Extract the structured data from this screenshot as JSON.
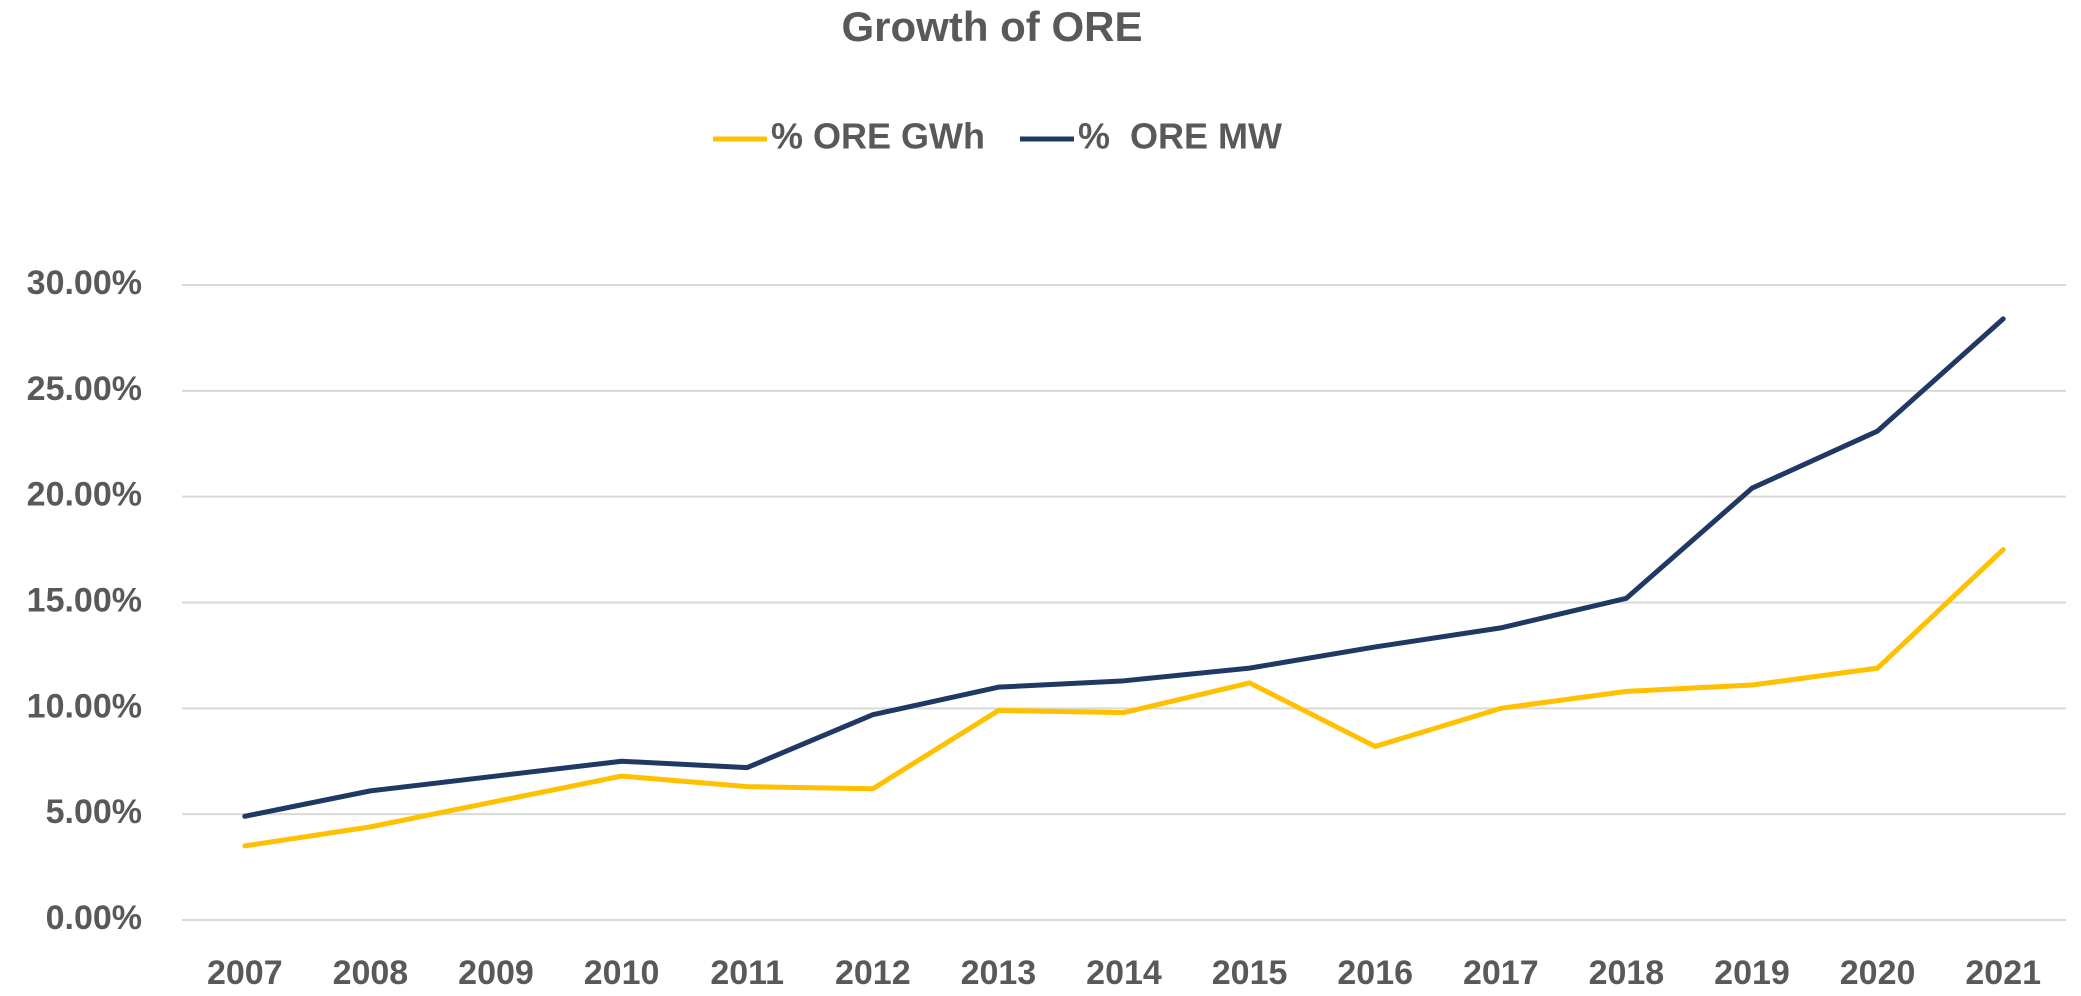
{
  "chart_data": {
    "type": "line",
    "title": "Growth of ORE",
    "categories": [
      "2007",
      "2008",
      "2009",
      "2010",
      "2011",
      "2012",
      "2013",
      "2014",
      "2015",
      "2016",
      "2017",
      "2018",
      "2019",
      "2020",
      "2021"
    ],
    "series": [
      {
        "name": "% ORE GWh",
        "color": "#ffc000",
        "values": [
          3.5,
          4.4,
          5.6,
          6.8,
          6.3,
          6.2,
          9.9,
          9.8,
          11.2,
          8.2,
          10.0,
          10.8,
          11.1,
          11.9,
          17.5
        ]
      },
      {
        "name": "%  ORE MW",
        "color": "#203864",
        "values": [
          4.9,
          6.1,
          6.8,
          7.5,
          7.2,
          9.7,
          11.0,
          11.3,
          11.9,
          12.9,
          13.8,
          15.2,
          20.4,
          23.1,
          28.4
        ]
      }
    ],
    "ylim": [
      0,
      30
    ],
    "yticks": [
      {
        "value": 0,
        "label": "0.00%"
      },
      {
        "value": 5,
        "label": "5.00%"
      },
      {
        "value": 10,
        "label": "10.00%"
      },
      {
        "value": 15,
        "label": "15.00%"
      },
      {
        "value": 20,
        "label": "20.00%"
      },
      {
        "value": 25,
        "label": "25.00%"
      },
      {
        "value": 30,
        "label": "30.00%"
      }
    ],
    "grid": true,
    "legend": "top"
  }
}
